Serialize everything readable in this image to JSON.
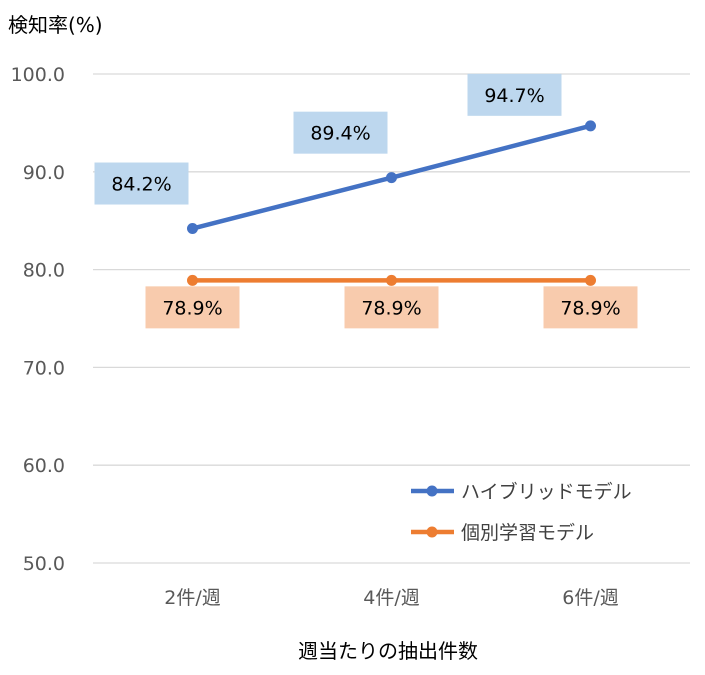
{
  "chart_data": {
    "type": "line",
    "ylabel": "検知率(%)",
    "xlabel": "週当たりの抽出件数",
    "categories": [
      "2件/週",
      "4件/週",
      "6件/週"
    ],
    "ylim": [
      50,
      100
    ],
    "yticks": [
      "100.0",
      "90.0",
      "80.0",
      "70.0",
      "60.0",
      "50.0"
    ],
    "grid": true,
    "legend_position": "bottom-right",
    "series": [
      {
        "name": "ハイブリッドモデル",
        "values": [
          84.2,
          89.4,
          94.7
        ],
        "labels": [
          "84.2%",
          "89.4%",
          "94.7%"
        ],
        "color": "#4472C4",
        "label_bg": "#BDD7EE",
        "label_position": "above"
      },
      {
        "name": "個別学習モデル",
        "values": [
          78.9,
          78.9,
          78.9
        ],
        "labels": [
          "78.9%",
          "78.9%",
          "78.9%"
        ],
        "color": "#ED7D31",
        "label_bg": "#F8CBAD",
        "label_position": "below"
      }
    ]
  }
}
